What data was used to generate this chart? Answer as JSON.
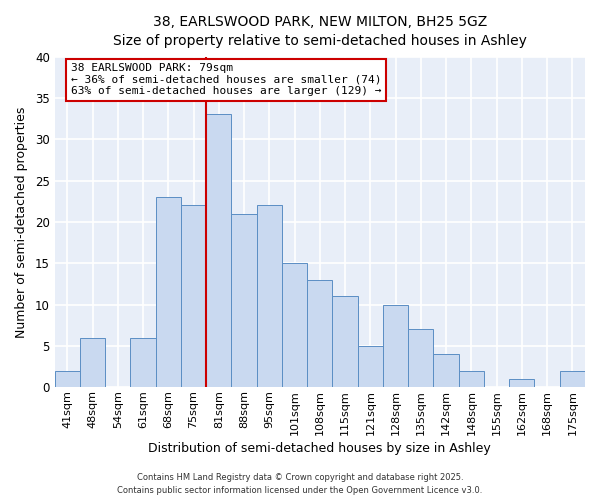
{
  "title_line1": "38, EARLSWOOD PARK, NEW MILTON, BH25 5GZ",
  "title_line2": "Size of property relative to semi-detached houses in Ashley",
  "xlabel": "Distribution of semi-detached houses by size in Ashley",
  "ylabel": "Number of semi-detached properties",
  "bar_labels": [
    "41sqm",
    "48sqm",
    "54sqm",
    "61sqm",
    "68sqm",
    "75sqm",
    "81sqm",
    "88sqm",
    "95sqm",
    "101sqm",
    "108sqm",
    "115sqm",
    "121sqm",
    "128sqm",
    "135sqm",
    "142sqm",
    "148sqm",
    "155sqm",
    "162sqm",
    "168sqm",
    "175sqm"
  ],
  "bar_values": [
    2,
    6,
    0,
    6,
    23,
    22,
    33,
    21,
    22,
    15,
    13,
    11,
    5,
    10,
    7,
    4,
    2,
    0,
    1,
    0,
    2
  ],
  "bar_color": "#c9d9f0",
  "bar_edgecolor": "#5b8ec4",
  "bg_color": "#e8eef8",
  "grid_color": "#ffffff",
  "ylim": [
    0,
    40
  ],
  "yticks": [
    0,
    5,
    10,
    15,
    20,
    25,
    30,
    35,
    40
  ],
  "property_line_color": "#cc0000",
  "annotation_text_line1": "38 EARLSWOOD PARK: 79sqm",
  "annotation_text_line2": "← 36% of semi-detached houses are smaller (74)",
  "annotation_text_line3": "63% of semi-detached houses are larger (129) →",
  "annotation_box_color": "#cc0000",
  "footer_line1": "Contains HM Land Registry data © Crown copyright and database right 2025.",
  "footer_line2": "Contains public sector information licensed under the Open Government Licence v3.0."
}
